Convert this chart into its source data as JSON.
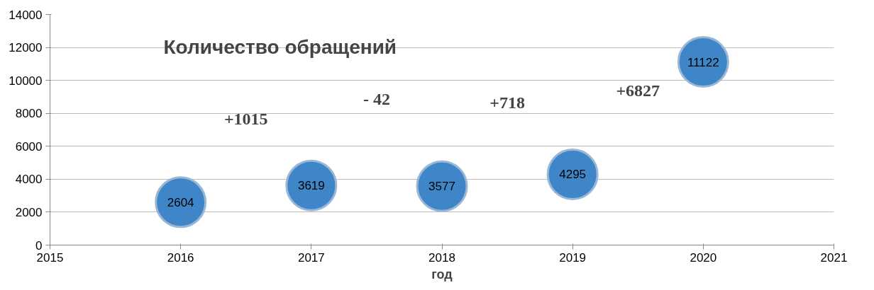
{
  "chart_data": {
    "type": "scatter",
    "title": "Количество обращений",
    "xlabel": "год",
    "x": [
      2016,
      2017,
      2018,
      2019,
      2020
    ],
    "series": [
      {
        "color": "#3f86c9",
        "values": [
          2604,
          3619,
          3577,
          4295,
          11122
        ]
      }
    ],
    "xlim": [
      2015,
      2021
    ],
    "xticks": [
      2015,
      2016,
      2017,
      2018,
      2019,
      2020,
      2021
    ],
    "ylim": [
      0,
      14000
    ],
    "yticks": [
      0,
      2000,
      4000,
      6000,
      8000,
      10000,
      12000,
      14000
    ],
    "grid": "y",
    "marker": "circle",
    "data_labels": true,
    "annotations": [
      "+1015",
      "- 42",
      "+718",
      "+6827"
    ]
  }
}
